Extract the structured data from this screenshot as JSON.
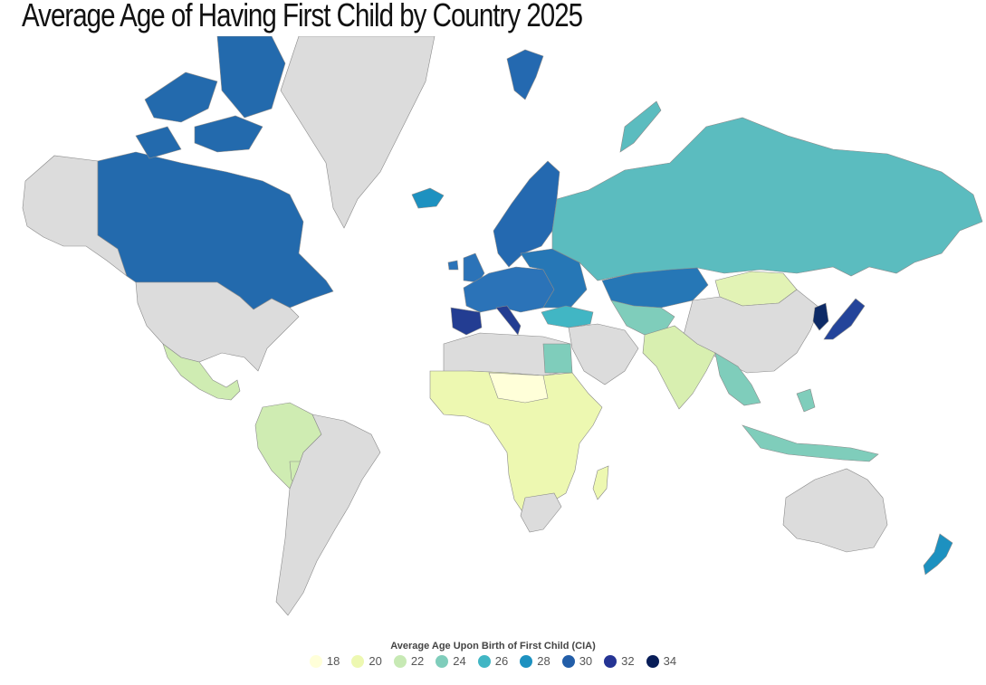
{
  "title": "Average Age of Having First Child by Country 2025",
  "legend": {
    "title": "Average Age Upon Birth of First Child (CIA)",
    "items": [
      {
        "label": "18",
        "color": "#ffffd9"
      },
      {
        "label": "20",
        "color": "#edf8b1"
      },
      {
        "label": "22",
        "color": "#c7e9b4"
      },
      {
        "label": "24",
        "color": "#7fcdbb"
      },
      {
        "label": "26",
        "color": "#41b6c4"
      },
      {
        "label": "28",
        "color": "#1d91c0"
      },
      {
        "label": "30",
        "color": "#225ea8"
      },
      {
        "label": "32",
        "color": "#253494"
      },
      {
        "label": "34",
        "color": "#081d58"
      }
    ]
  },
  "colors": {
    "no_data": "#dcdcdc",
    "canada": "#236aad",
    "russia": "#5bbcbf",
    "kazakhstan": "#2677b6",
    "nordics": "#2469b0",
    "western_europe": "#2b73b8",
    "spain_italy": "#233d92",
    "korea": "#0d2a66",
    "japan": "#24449a",
    "turkey": "#41b6c4",
    "mongolia": "#e2f3b5",
    "africa": "#edf8b1",
    "africa_light": "#ffffd9",
    "south_asia": "#d8efb0",
    "se_asia": "#7fcdbb",
    "latin_america": "#cfecb2",
    "new_zealand": "#1d91c0",
    "iceland": "#1d91c0"
  }
}
